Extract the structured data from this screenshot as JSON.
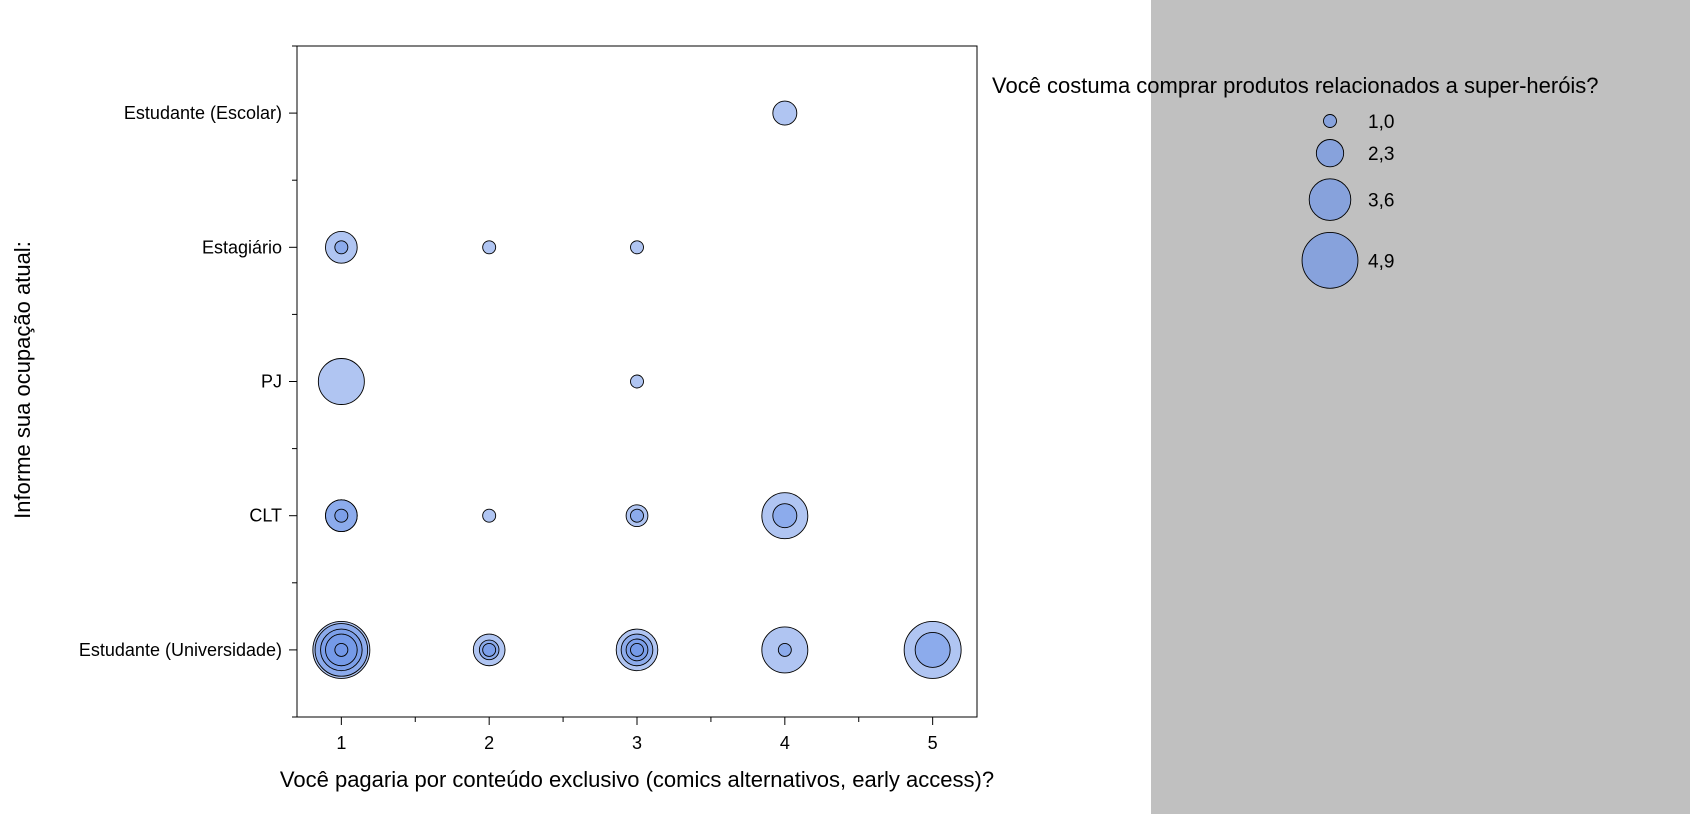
{
  "chart_data": {
    "type": "scatter",
    "subtype": "bubble",
    "xlabel": "Você pagaria por conteúdo exclusivo (comics alternativos, early access)?",
    "ylabel": "Informe sua ocupação atual:",
    "x_ticks": [
      "1",
      "2",
      "3",
      "4",
      "5"
    ],
    "xlim": [
      0.7,
      5.3
    ],
    "y_categories": [
      "Estudante (Universidade)",
      "CLT",
      "PJ",
      "Estagiário",
      "Estudante (Escolar)"
    ],
    "ylim": [
      -0.5,
      4.5
    ],
    "grid": false,
    "bubble_color": "#6f95e8",
    "bubble_edge_color": "#000000",
    "size_legend": {
      "title": "Você costuma comprar produtos relacionados a super-heróis?",
      "entries": [
        {
          "label": "1,0",
          "value": 1.0
        },
        {
          "label": "2,3",
          "value": 2.3
        },
        {
          "label": "3,6",
          "value": 3.6
        },
        {
          "label": "4,9",
          "value": 4.9
        }
      ],
      "placement": "top-right"
    },
    "points": [
      {
        "x": 4,
        "y": "Estudante (Escolar)",
        "size": 2.0
      },
      {
        "x": 1,
        "y": "Estagiário",
        "size": 1.0
      },
      {
        "x": 1,
        "y": "Estagiário",
        "size": 2.7
      },
      {
        "x": 2,
        "y": "Estagiário",
        "size": 1.0
      },
      {
        "x": 3,
        "y": "Estagiário",
        "size": 1.0
      },
      {
        "x": 1,
        "y": "PJ",
        "size": 4.0
      },
      {
        "x": 3,
        "y": "PJ",
        "size": 1.0
      },
      {
        "x": 1,
        "y": "CLT",
        "size": 1.0
      },
      {
        "x": 1,
        "y": "CLT",
        "size": 2.7
      },
      {
        "x": 1,
        "y": "CLT",
        "size": 2.7
      },
      {
        "x": 2,
        "y": "CLT",
        "size": 1.0
      },
      {
        "x": 3,
        "y": "CLT",
        "size": 1.0
      },
      {
        "x": 3,
        "y": "CLT",
        "size": 1.8
      },
      {
        "x": 4,
        "y": "CLT",
        "size": 2.0
      },
      {
        "x": 4,
        "y": "CLT",
        "size": 4.0
      },
      {
        "x": 1,
        "y": "Estudante (Universidade)",
        "size": 1.0
      },
      {
        "x": 1,
        "y": "Estudante (Universidade)",
        "size": 2.7
      },
      {
        "x": 1,
        "y": "Estudante (Universidade)",
        "size": 3.6
      },
      {
        "x": 1,
        "y": "Estudante (Universidade)",
        "size": 4.6
      },
      {
        "x": 1,
        "y": "Estudante (Universidade)",
        "size": 5.0
      },
      {
        "x": 2,
        "y": "Estudante (Universidade)",
        "size": 1.0
      },
      {
        "x": 2,
        "y": "Estudante (Universidade)",
        "size": 1.6
      },
      {
        "x": 2,
        "y": "Estudante (Universidade)",
        "size": 2.7
      },
      {
        "x": 3,
        "y": "Estudante (Universidade)",
        "size": 1.0
      },
      {
        "x": 3,
        "y": "Estudante (Universidade)",
        "size": 1.8
      },
      {
        "x": 3,
        "y": "Estudante (Universidade)",
        "size": 2.7
      },
      {
        "x": 3,
        "y": "Estudante (Universidade)",
        "size": 3.6
      },
      {
        "x": 4,
        "y": "Estudante (Universidade)",
        "size": 1.0
      },
      {
        "x": 4,
        "y": "Estudante (Universidade)",
        "size": 4.0
      },
      {
        "x": 5,
        "y": "Estudante (Universidade)",
        "size": 3.0
      },
      {
        "x": 5,
        "y": "Estudante (Universidade)",
        "size": 5.0
      }
    ]
  }
}
